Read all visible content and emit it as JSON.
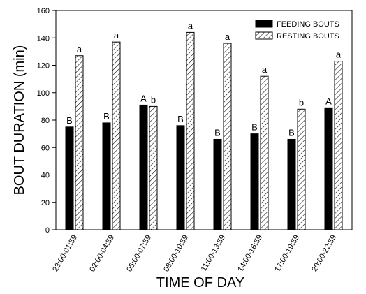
{
  "chart_data": {
    "type": "bar",
    "xlabel": "TIME OF DAY",
    "ylabel": "BOUT DURATION (min)",
    "ylim": [
      0,
      160
    ],
    "yticks": [
      0,
      20,
      40,
      60,
      80,
      100,
      120,
      140,
      160
    ],
    "categories": [
      "23:00-01:59",
      "02:00-04:59",
      "05:00-07:59",
      "08:00-10:59",
      "11:00-13:59",
      "14:00-16:59",
      "17:00-19:59",
      "20:00-22:59"
    ],
    "series": [
      {
        "name": "FEEDING BOUTS",
        "pattern": "solid",
        "color": "#000000",
        "values": [
          75,
          78,
          91,
          76,
          66,
          70,
          66,
          89
        ],
        "labels": [
          "B",
          "B",
          "A",
          "B",
          "B",
          "B",
          "B",
          "A"
        ]
      },
      {
        "name": "RESTING BOUTS",
        "pattern": "hatched",
        "color": "#000000",
        "values": [
          127,
          137,
          90,
          144,
          136,
          112,
          88,
          123
        ],
        "labels": [
          "a",
          "a",
          "b",
          "a",
          "a",
          "a",
          "b",
          "a"
        ]
      }
    ],
    "legend_position": "top-right",
    "grid": false
  }
}
